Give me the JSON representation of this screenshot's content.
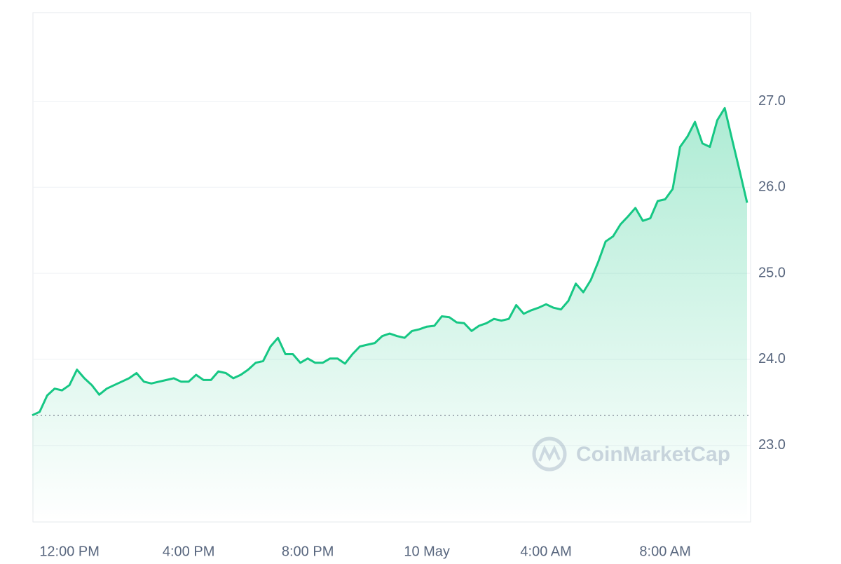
{
  "chart_data": {
    "type": "line",
    "categories": [
      null,
      null,
      null,
      null,
      null,
      "12:00 PM",
      null,
      null,
      null,
      null,
      null,
      null,
      null,
      null,
      null,
      null,
      null,
      null,
      null,
      null,
      null,
      "4:00 PM",
      null,
      null,
      null,
      null,
      null,
      null,
      null,
      null,
      null,
      null,
      null,
      null,
      null,
      null,
      null,
      "8:00 PM",
      null,
      null,
      null,
      null,
      null,
      null,
      null,
      null,
      null,
      null,
      null,
      null,
      null,
      null,
      null,
      "10 May",
      null,
      null,
      null,
      null,
      null,
      null,
      null,
      null,
      null,
      null,
      null,
      null,
      null,
      null,
      null,
      "4:00 AM",
      null,
      null,
      null,
      null,
      null,
      null,
      null,
      null,
      null,
      null,
      null,
      null,
      null,
      null,
      null,
      "8:00 AM",
      null,
      null,
      null,
      null,
      null,
      null,
      null,
      null,
      null,
      null,
      null
    ],
    "series": [
      {
        "color": "#16c784",
        "values": [
          23.35,
          23.39,
          23.58,
          23.66,
          23.64,
          23.7,
          23.88,
          23.78,
          23.7,
          23.59,
          23.66,
          23.7,
          23.74,
          23.78,
          23.84,
          23.74,
          23.72,
          23.74,
          23.76,
          23.78,
          23.74,
          23.74,
          23.82,
          23.76,
          23.76,
          23.86,
          23.84,
          23.78,
          23.82,
          23.88,
          23.96,
          23.98,
          24.15,
          24.25,
          24.06,
          24.06,
          23.96,
          24.01,
          23.96,
          23.96,
          24.01,
          24.01,
          23.95,
          24.06,
          24.15,
          24.17,
          24.19,
          24.27,
          24.3,
          24.27,
          24.25,
          24.33,
          24.35,
          24.38,
          24.39,
          24.5,
          24.49,
          24.43,
          24.42,
          24.33,
          24.39,
          24.42,
          24.47,
          24.45,
          24.47,
          24.63,
          24.53,
          24.57,
          24.6,
          24.64,
          24.6,
          24.58,
          24.68,
          24.88,
          24.78,
          24.92,
          25.13,
          25.37,
          25.43,
          25.57,
          25.66,
          25.76,
          25.61,
          25.64,
          25.84,
          25.86,
          25.98,
          26.47,
          26.59,
          26.76,
          26.51,
          26.47,
          26.78,
          26.92,
          26.55,
          26.19,
          25.82
        ]
      }
    ],
    "reference": 23.35,
    "ylim": [
      22.11,
      28.03
    ],
    "yticks": [
      {
        "value": 23,
        "label": "23.0"
      },
      {
        "value": 24,
        "label": "24.0"
      },
      {
        "value": 25,
        "label": "25.0"
      },
      {
        "value": 26,
        "label": "26.0"
      },
      {
        "value": 27,
        "label": "27.0"
      }
    ],
    "grid": true,
    "watermark": "CoinMarketCap"
  }
}
